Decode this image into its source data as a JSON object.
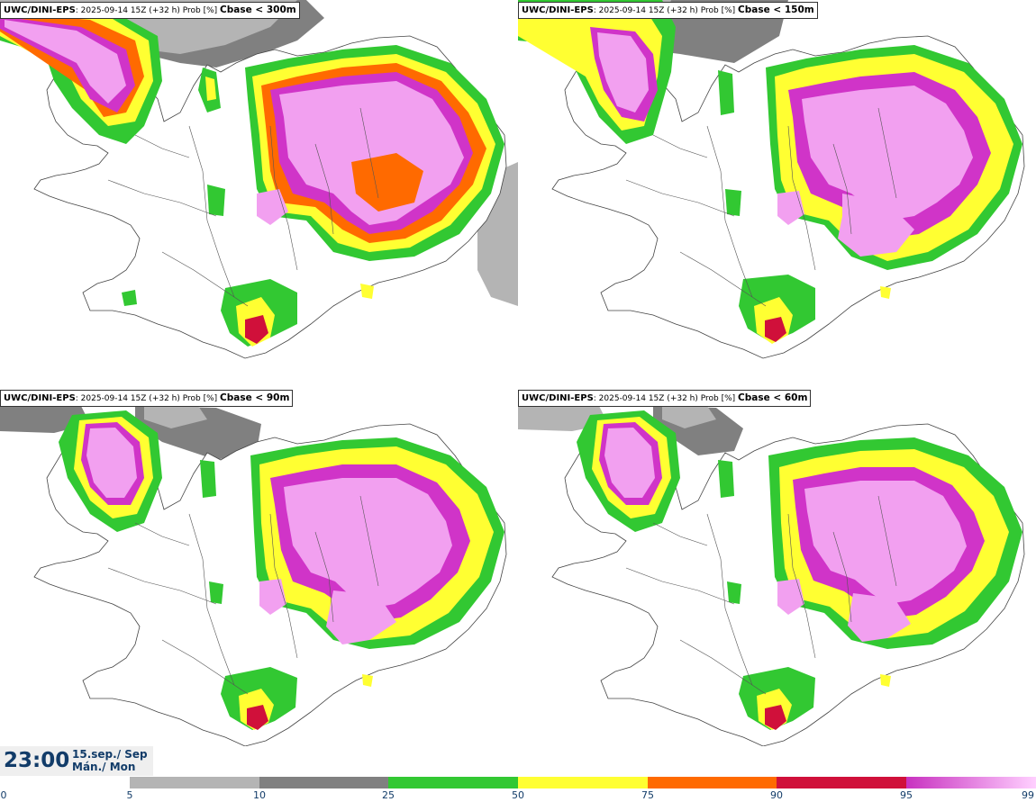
{
  "panels": [
    {
      "source": "UWC/DINI-EPS",
      "meta": ": 2025-09-14 15Z (+32 h) Prob [%]",
      "threshold": "Cbase < 300m"
    },
    {
      "source": "UWC/DINI-EPS",
      "meta": ": 2025-09-14 15Z (+32 h) Prob [%]",
      "threshold": "Cbase < 150m"
    },
    {
      "source": "UWC/DINI-EPS",
      "meta": ": 2025-09-14 15Z (+32 h) Prob [%]",
      "threshold": "Cbase < 90m"
    },
    {
      "source": "UWC/DINI-EPS",
      "meta": ": 2025-09-14 15Z (+32 h) Prob [%]",
      "threshold": "Cbase < 60m"
    }
  ],
  "valid_time": {
    "time": "23:00",
    "date_line": "15.sep./ Sep",
    "day_line": "Mán./ Mon"
  },
  "legend": {
    "tick_labels": [
      "0",
      "5",
      "10",
      "25",
      "50",
      "75",
      "90",
      "95",
      "99"
    ],
    "bins": [
      {
        "from": "0",
        "to": "5",
        "color": "#ffffff"
      },
      {
        "from": "5",
        "to": "10",
        "color": "#b4b4b4"
      },
      {
        "from": "10",
        "to": "25",
        "color": "#808080"
      },
      {
        "from": "25",
        "to": "50",
        "color": "#32c832"
      },
      {
        "from": "50",
        "to": "75",
        "color": "#ffff32"
      },
      {
        "from": "75",
        "to": "90",
        "color": "#ff6a00"
      },
      {
        "from": "90",
        "to": "95",
        "color": "#d0103a"
      },
      {
        "from": "95",
        "to": "99",
        "color": "#d034c8"
      }
    ]
  },
  "colors": {
    "accent": "#123c69",
    "coast": "#444444",
    "magenta_light": "#f2a0f0"
  }
}
